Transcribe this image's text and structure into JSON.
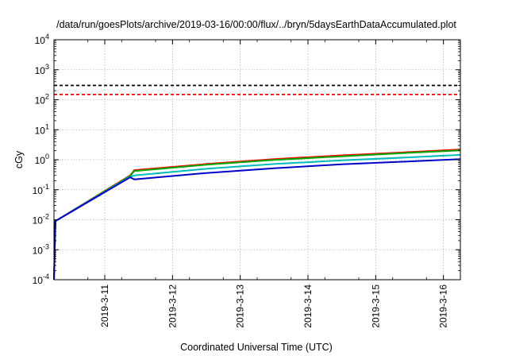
{
  "chart_data": {
    "type": "line",
    "title": "/data/run/goesPlots/archive/2019-03-16/00:00/flux/../bryn/5daysEarthDataAccumulated.plot",
    "xlabel": "Coordinated Universal Time (UTC)",
    "ylabel": "cGy",
    "x_ticks": [
      "2019-3-11",
      "2019-3-12",
      "2019-3-13",
      "2019-3-14",
      "2019-3-15",
      "2019-3-16"
    ],
    "xlim": [
      "2019-03-10 06:00",
      "2019-03-16 06:00"
    ],
    "y_scale": "log",
    "ylim": [
      0.0001,
      10000
    ],
    "y_ticks": [
      {
        "base": "10",
        "exp": "-4",
        "value": 0.0001
      },
      {
        "base": "10",
        "exp": "-3",
        "value": 0.001
      },
      {
        "base": "10",
        "exp": "-2",
        "value": 0.01
      },
      {
        "base": "10",
        "exp": "-1",
        "value": 0.1
      },
      {
        "base": "10",
        "exp": "0",
        "value": 1
      },
      {
        "base": "10",
        "exp": "1",
        "value": 10
      },
      {
        "base": "10",
        "exp": "2",
        "value": 100
      },
      {
        "base": "10",
        "exp": "3",
        "value": 1000
      },
      {
        "base": "10",
        "exp": "4",
        "value": 10000
      }
    ],
    "grid": true,
    "reference_lines": [
      {
        "y": 300,
        "color": "#000000",
        "style": "dashed"
      },
      {
        "y": 150,
        "color": "#ff0000",
        "style": "dashed"
      }
    ],
    "series": [
      {
        "color": "#ff0000",
        "points": [
          [
            "2019-03-10 06:00",
            0.0001
          ],
          [
            "2019-03-10 06:30",
            0.009
          ],
          [
            "2019-03-11 09:00",
            0.3
          ],
          [
            "2019-03-11 10:30",
            0.45
          ],
          [
            "2019-03-12 12:00",
            0.72
          ],
          [
            "2019-03-13 12:00",
            1.05
          ],
          [
            "2019-03-14 12:00",
            1.4
          ],
          [
            "2019-03-15 12:00",
            1.8
          ],
          [
            "2019-03-16 06:00",
            2.2
          ]
        ]
      },
      {
        "color": "#00aa00",
        "points": [
          [
            "2019-03-10 06:00",
            0.0001
          ],
          [
            "2019-03-10 06:30",
            0.009
          ],
          [
            "2019-03-11 09:00",
            0.29
          ],
          [
            "2019-03-11 10:30",
            0.42
          ],
          [
            "2019-03-12 12:00",
            0.68
          ],
          [
            "2019-03-13 12:00",
            0.98
          ],
          [
            "2019-03-14 12:00",
            1.3
          ],
          [
            "2019-03-15 12:00",
            1.7
          ],
          [
            "2019-03-16 06:00",
            2.05
          ]
        ]
      },
      {
        "color": "#00bbbb",
        "points": [
          [
            "2019-03-10 06:00",
            0.0001
          ],
          [
            "2019-03-10 06:30",
            0.009
          ],
          [
            "2019-03-11 09:00",
            0.27
          ],
          [
            "2019-03-11 10:30",
            0.3
          ],
          [
            "2019-03-12 12:00",
            0.5
          ],
          [
            "2019-03-13 12:00",
            0.72
          ],
          [
            "2019-03-14 12:00",
            0.95
          ],
          [
            "2019-03-15 12:00",
            1.2
          ],
          [
            "2019-03-16 06:00",
            1.45
          ]
        ]
      },
      {
        "color": "#0000cc",
        "points": [
          [
            "2019-03-10 06:00",
            0.0001
          ],
          [
            "2019-03-10 06:30",
            0.009
          ],
          [
            "2019-03-11 09:00",
            0.26
          ],
          [
            "2019-03-11 10:30",
            0.22
          ],
          [
            "2019-03-12 12:00",
            0.36
          ],
          [
            "2019-03-13 12:00",
            0.52
          ],
          [
            "2019-03-14 12:00",
            0.7
          ],
          [
            "2019-03-15 12:00",
            0.88
          ],
          [
            "2019-03-16 06:00",
            1.05
          ]
        ]
      }
    ]
  }
}
